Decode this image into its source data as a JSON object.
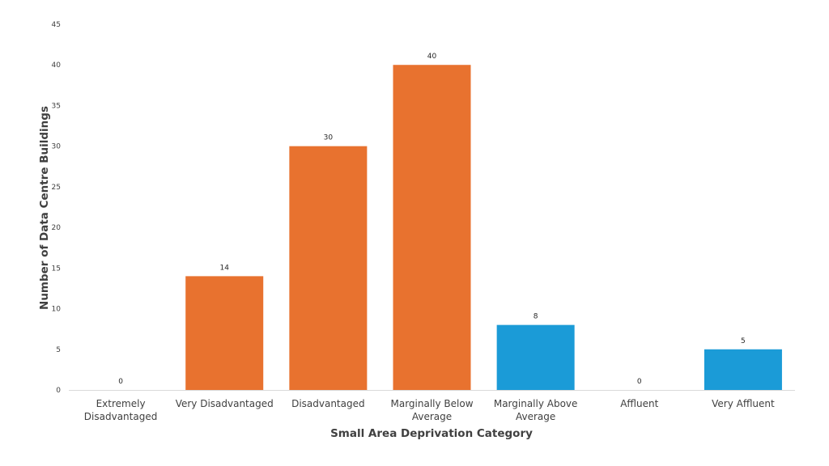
{
  "chart_data": {
    "type": "bar",
    "title": "",
    "xlabel": "Small Area Deprivation Category",
    "ylabel": "Number of Data Centre Buildings",
    "categories": [
      [
        "Extremely",
        "Disadvantaged"
      ],
      [
        "Very Disadvantaged"
      ],
      [
        "Disadvantaged"
      ],
      [
        "Marginally Below",
        "Average"
      ],
      [
        "Marginally Above",
        "Average"
      ],
      [
        "Affluent"
      ],
      [
        "Very Affluent"
      ]
    ],
    "values": [
      0,
      14,
      30,
      40,
      8,
      0,
      5
    ],
    "value_labels": [
      "0",
      "14",
      "30",
      "40",
      "8",
      "0",
      "5"
    ],
    "bar_colors": [
      "#E8722F",
      "#E8722F",
      "#E8722F",
      "#E8722F",
      "#1B9BD7",
      "#1B9BD7",
      "#1B9BD7"
    ],
    "ylim": [
      0,
      45
    ],
    "yticks": [
      0,
      5,
      10,
      15,
      20,
      25,
      30,
      35,
      40,
      45
    ],
    "grid": false,
    "legend": "none"
  },
  "colors": {
    "disadvantaged": "#E8722F",
    "affluent": "#1B9BD7",
    "axis": "#d9d9d9"
  }
}
